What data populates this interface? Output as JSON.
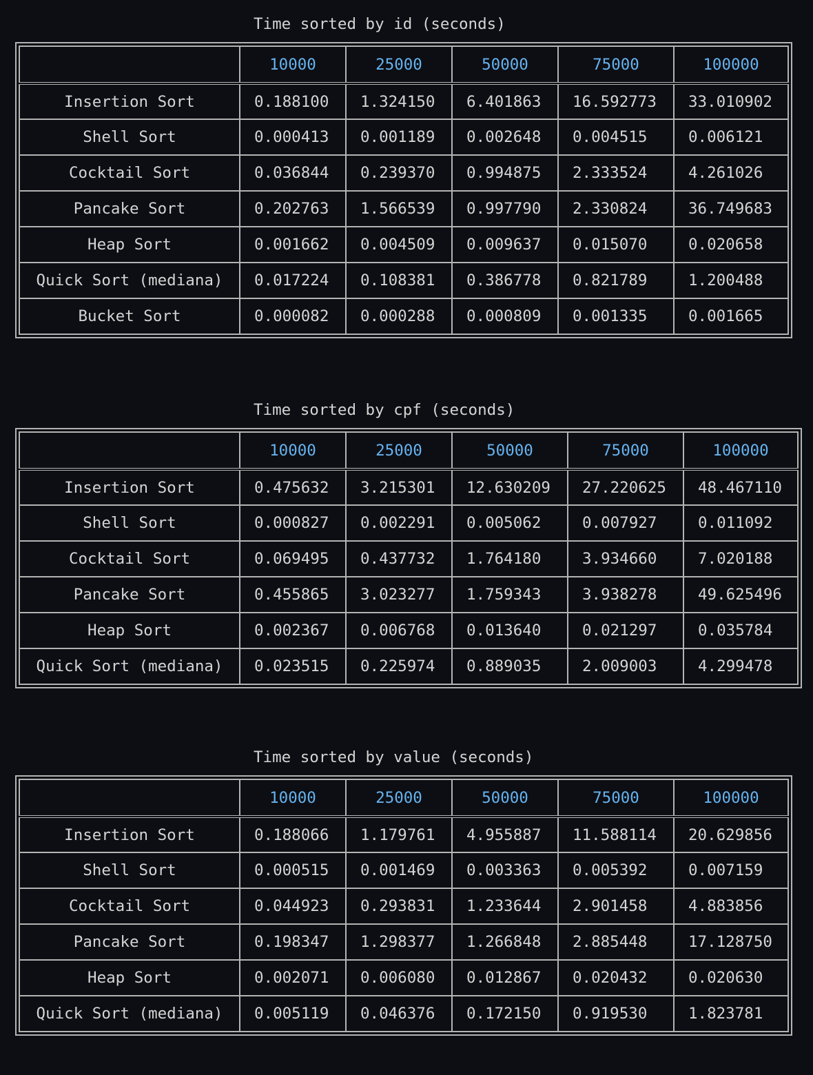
{
  "tables": [
    {
      "title": "Time sorted by id (seconds)",
      "columns": [
        "10000",
        "25000",
        "50000",
        "75000",
        "100000"
      ],
      "rows": [
        {
          "name": "Insertion Sort",
          "values": [
            "0.188100",
            "1.324150",
            "6.401863",
            "16.592773",
            "33.010902"
          ]
        },
        {
          "name": "Shell Sort",
          "values": [
            "0.000413",
            "0.001189",
            "0.002648",
            "0.004515",
            "0.006121"
          ]
        },
        {
          "name": "Cocktail Sort",
          "values": [
            "0.036844",
            "0.239370",
            "0.994875",
            "2.333524",
            "4.261026"
          ]
        },
        {
          "name": "Pancake Sort",
          "values": [
            "0.202763",
            "1.566539",
            "0.997790",
            "2.330824",
            "36.749683"
          ]
        },
        {
          "name": "Heap Sort",
          "values": [
            "0.001662",
            "0.004509",
            "0.009637",
            "0.015070",
            "0.020658"
          ]
        },
        {
          "name": "Quick Sort (mediana)",
          "values": [
            "0.017224",
            "0.108381",
            "0.386778",
            "0.821789",
            "1.200488"
          ]
        },
        {
          "name": "Bucket Sort",
          "values": [
            "0.000082",
            "0.000288",
            "0.000809",
            "0.001335",
            "0.001665"
          ]
        }
      ]
    },
    {
      "title": "Time sorted by cpf (seconds)",
      "columns": [
        "10000",
        "25000",
        "50000",
        "75000",
        "100000"
      ],
      "rows": [
        {
          "name": "Insertion Sort",
          "values": [
            "0.475632",
            "3.215301",
            "12.630209",
            "27.220625",
            "48.467110"
          ]
        },
        {
          "name": "Shell Sort",
          "values": [
            "0.000827",
            "0.002291",
            "0.005062",
            "0.007927",
            "0.011092"
          ]
        },
        {
          "name": "Cocktail Sort",
          "values": [
            "0.069495",
            "0.437732",
            "1.764180",
            "3.934660",
            "7.020188"
          ]
        },
        {
          "name": "Pancake Sort",
          "values": [
            "0.455865",
            "3.023277",
            "1.759343",
            "3.938278",
            "49.625496"
          ]
        },
        {
          "name": "Heap Sort",
          "values": [
            "0.002367",
            "0.006768",
            "0.013640",
            "0.021297",
            "0.035784"
          ]
        },
        {
          "name": "Quick Sort (mediana)",
          "values": [
            "0.023515",
            "0.225974",
            "0.889035",
            "2.009003",
            "4.299478"
          ]
        }
      ]
    },
    {
      "title": "Time sorted by value (seconds)",
      "columns": [
        "10000",
        "25000",
        "50000",
        "75000",
        "100000"
      ],
      "rows": [
        {
          "name": "Insertion Sort",
          "values": [
            "0.188066",
            "1.179761",
            "4.955887",
            "11.588114",
            "20.629856"
          ]
        },
        {
          "name": "Shell Sort",
          "values": [
            "0.000515",
            "0.001469",
            "0.003363",
            "0.005392",
            "0.007159"
          ]
        },
        {
          "name": "Cocktail Sort",
          "values": [
            "0.044923",
            "0.293831",
            "1.233644",
            "2.901458",
            "4.883856"
          ]
        },
        {
          "name": "Pancake Sort",
          "values": [
            "0.198347",
            "1.298377",
            "1.266848",
            "2.885448",
            "17.128750"
          ]
        },
        {
          "name": "Heap Sort",
          "values": [
            "0.002071",
            "0.006080",
            "0.012867",
            "0.020432",
            "0.020630"
          ]
        },
        {
          "name": "Quick Sort (mediana)",
          "values": [
            "0.005119",
            "0.046376",
            "0.172150",
            "0.919530",
            "1.823781"
          ]
        }
      ]
    }
  ]
}
